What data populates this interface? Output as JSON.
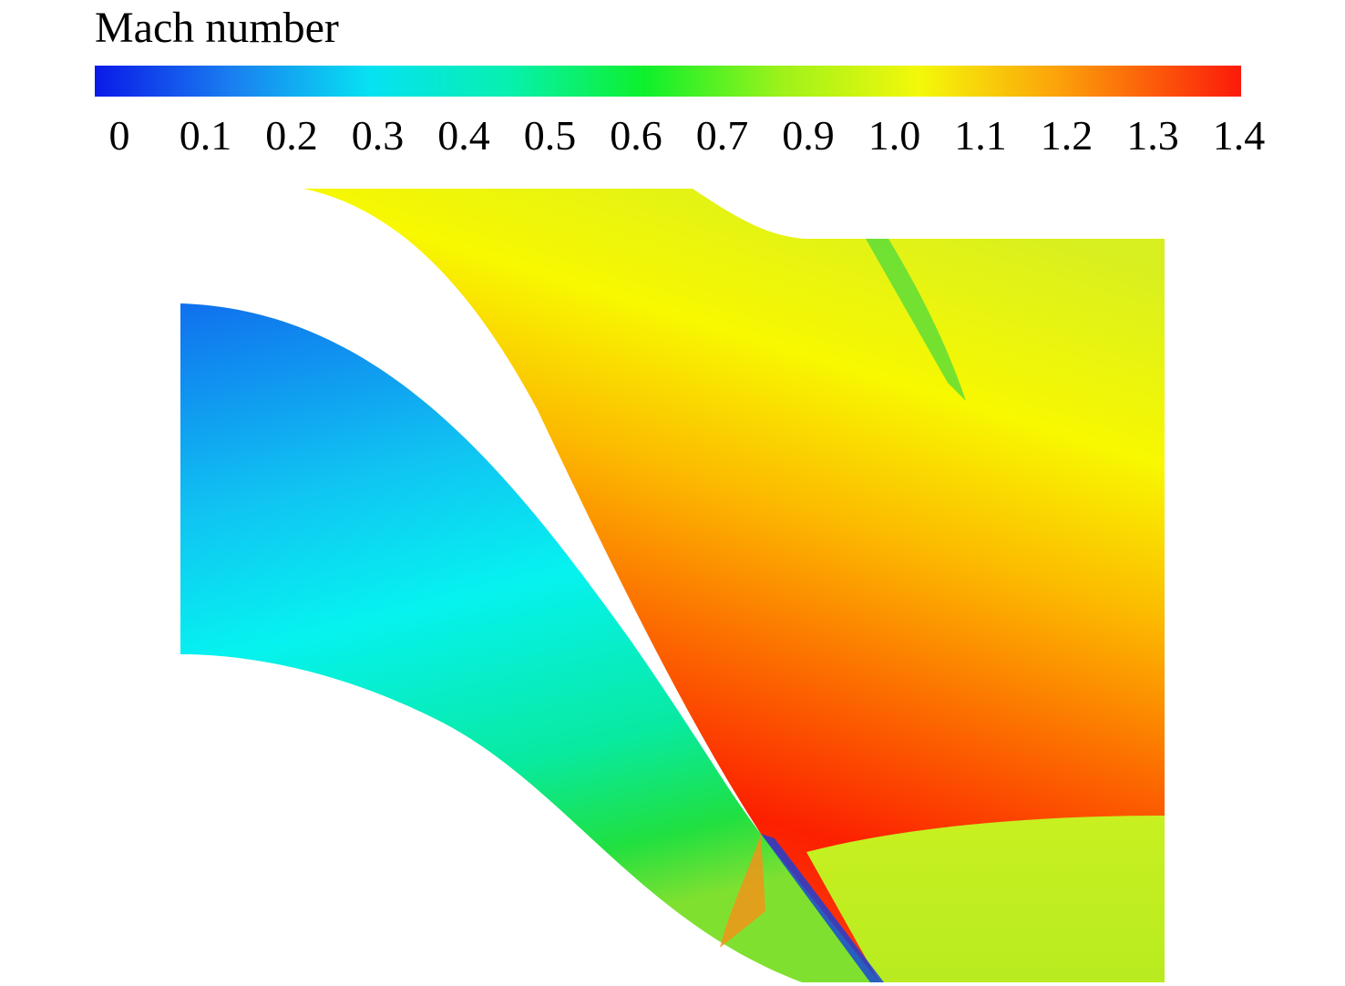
{
  "colorbar": {
    "title": "Mach number",
    "ticks": [
      "0",
      "0.1",
      "0.2",
      "0.3",
      "0.4",
      "0.5",
      "0.6",
      "0.7",
      "0.9",
      "1.0",
      "1.1",
      "1.2",
      "1.3",
      "1.4"
    ]
  }
}
